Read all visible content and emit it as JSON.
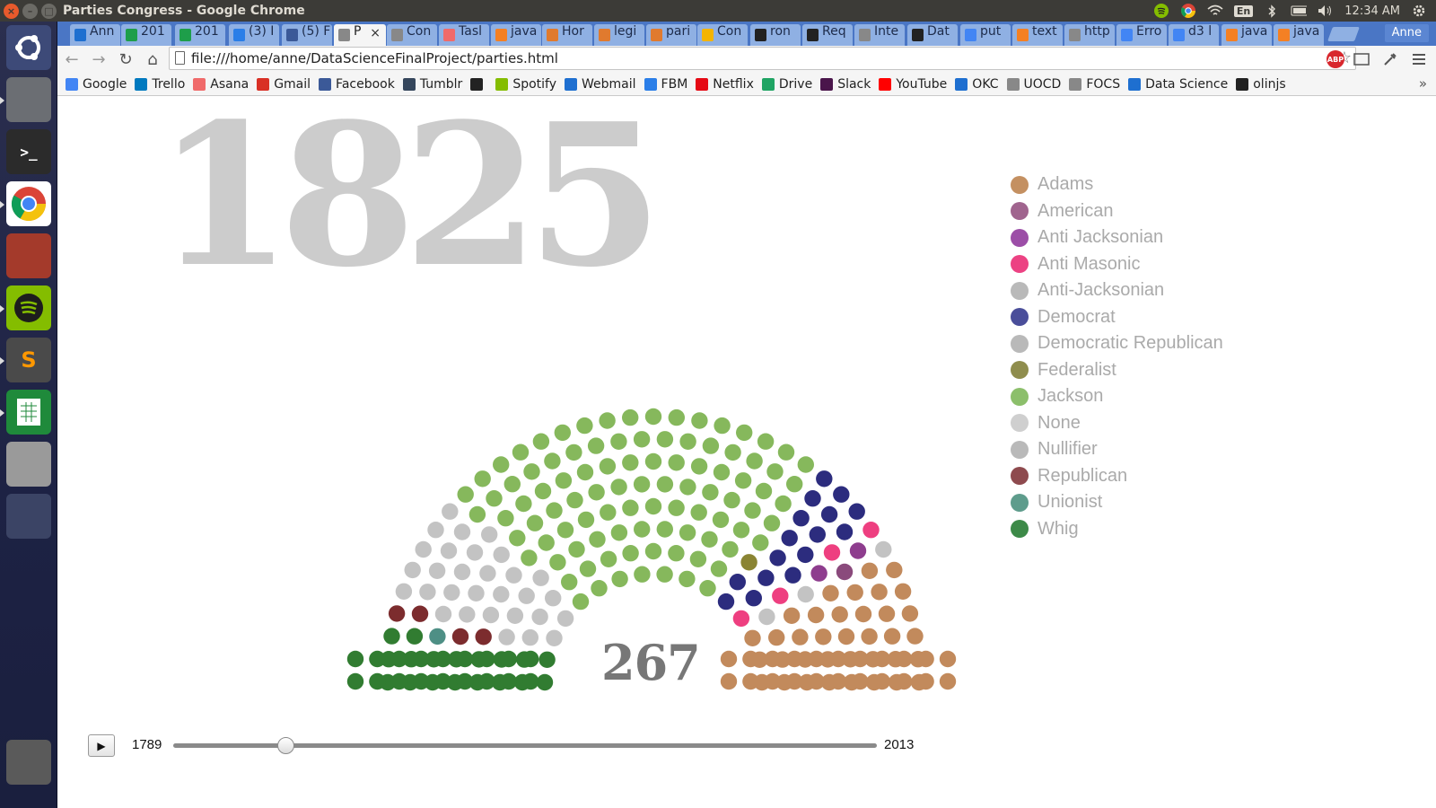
{
  "window": {
    "title": "Parties Congress - Google Chrome",
    "close_glyph": "×",
    "min_glyph": "–",
    "max_glyph": "□",
    "clock": "12:34 AM",
    "keyboard_lang": "En",
    "profile_name": "Anne"
  },
  "launcher": {
    "items": [
      {
        "name": "ubuntu-dash-icon",
        "bg": "#3d4a78"
      },
      {
        "name": "file-manager-icon",
        "bg": "#6b6e73"
      },
      {
        "name": "terminal-icon",
        "bg": "#2b2b2b"
      },
      {
        "name": "chrome-icon",
        "bg": "#ffffff"
      },
      {
        "name": "system-settings-icon",
        "bg": "#a43a2b"
      },
      {
        "name": "spotify-icon",
        "bg": "#84bd00"
      },
      {
        "name": "sublime-text-icon",
        "bg": "#4a4a4a"
      },
      {
        "name": "libreoffice-calc-icon",
        "bg": "#1f8a3b"
      },
      {
        "name": "disk-drive-icon",
        "bg": "#9a9a9a"
      },
      {
        "name": "workspace-switcher-icon",
        "bg": "#3b4465"
      },
      {
        "name": "trash-icon",
        "bg": "#5a5a5a"
      }
    ]
  },
  "tabs": [
    {
      "label": "Ann",
      "fav": "#1e6fd0"
    },
    {
      "label": "201",
      "fav": "#1e9e4a"
    },
    {
      "label": "201",
      "fav": "#1e9e4a"
    },
    {
      "label": "(3) I",
      "fav": "#2a7ee8"
    },
    {
      "label": "(5) F",
      "fav": "#3b5998"
    },
    {
      "label": "P",
      "fav": "#888888",
      "active": true
    },
    {
      "label": "Con",
      "fav": "#888888"
    },
    {
      "label": "Tasl",
      "fav": "#f06a6a"
    },
    {
      "label": "java",
      "fav": "#f48024"
    },
    {
      "label": "Hor",
      "fav": "#e07a2e"
    },
    {
      "label": "legi",
      "fav": "#e07a2e"
    },
    {
      "label": "pari",
      "fav": "#e07a2e"
    },
    {
      "label": "Con",
      "fav": "#f4b400"
    },
    {
      "label": "ron",
      "fav": "#222222"
    },
    {
      "label": "Req",
      "fav": "#222222"
    },
    {
      "label": "Inte",
      "fav": "#888888"
    },
    {
      "label": "Dat",
      "fav": "#222222"
    },
    {
      "label": "put",
      "fav": "#4285f4"
    },
    {
      "label": "text",
      "fav": "#f48024"
    },
    {
      "label": "http",
      "fav": "#888888"
    },
    {
      "label": "Erro",
      "fav": "#4285f4"
    },
    {
      "label": "d3 l",
      "fav": "#4285f4"
    },
    {
      "label": "java",
      "fav": "#f48024"
    },
    {
      "label": "java",
      "fav": "#f48024"
    }
  ],
  "address_bar": {
    "url": "file:///home/anne/DataScienceFinalProject/parties.html"
  },
  "bookmarks": [
    {
      "label": "Google",
      "color": "#4285f4"
    },
    {
      "label": "Trello",
      "color": "#0079bf"
    },
    {
      "label": "Asana",
      "color": "#f06a6a"
    },
    {
      "label": "Gmail",
      "color": "#d93025"
    },
    {
      "label": "Facebook",
      "color": "#3b5998"
    },
    {
      "label": "Tumblr",
      "color": "#35465c"
    },
    {
      "label": "",
      "color": "#222222"
    },
    {
      "label": "Spotify",
      "color": "#84bd00"
    },
    {
      "label": "Webmail",
      "color": "#1e6fd0"
    },
    {
      "label": "FBM",
      "color": "#2a7ee8"
    },
    {
      "label": "Netflix",
      "color": "#e50914"
    },
    {
      "label": "Drive",
      "color": "#1fa463"
    },
    {
      "label": "Slack",
      "color": "#4a154b"
    },
    {
      "label": "YouTube",
      "color": "#ff0000"
    },
    {
      "label": "OKC",
      "color": "#1e6fd0"
    },
    {
      "label": "UOCD",
      "color": "#888888"
    },
    {
      "label": "FOCS",
      "color": "#888888"
    },
    {
      "label": "Data Science",
      "color": "#1e6fd0"
    },
    {
      "label": "olinjs",
      "color": "#222222"
    }
  ],
  "page": {
    "year": "1825",
    "seat_count": "267",
    "timeline": {
      "min": "1789",
      "max": "2013",
      "value": 1825
    },
    "play_glyph": "▶"
  },
  "legend": [
    {
      "party": "Adams",
      "color": "#c49061"
    },
    {
      "party": "American",
      "color": "#a0648e"
    },
    {
      "party": "Anti Jacksonian",
      "color": "#9c4ea7"
    },
    {
      "party": "Anti Masonic",
      "color": "#ec4283"
    },
    {
      "party": "Anti-Jacksonian",
      "color": "#b9b9b9"
    },
    {
      "party": "Democrat",
      "color": "#4a4e9a"
    },
    {
      "party": "Democratic Republican",
      "color": "#b9b9b9"
    },
    {
      "party": "Federalist",
      "color": "#8f8d4d"
    },
    {
      "party": "Jackson",
      "color": "#8cbf6b"
    },
    {
      "party": "None",
      "color": "#cfcfcf"
    },
    {
      "party": "Nullifier",
      "color": "#b9b9b9"
    },
    {
      "party": "Republican",
      "color": "#8e4a4e"
    },
    {
      "party": "Unionist",
      "color": "#5e9c8c"
    },
    {
      "party": "Whig",
      "color": "#3d8a48"
    }
  ],
  "parliament_colors": {
    "whig": "#317c31",
    "unionist": "#4e8f85",
    "republican": "#7c2c2e",
    "gray": "#c3c3c3",
    "jackson": "#86b85c",
    "federalist": "#8a8433",
    "democrat": "#2c2c7e",
    "anti_masonic": "#ee3f80",
    "anti_jacksonian": "#8e3d8e",
    "american": "#8a4a7c",
    "adams": "#c28a5c"
  }
}
